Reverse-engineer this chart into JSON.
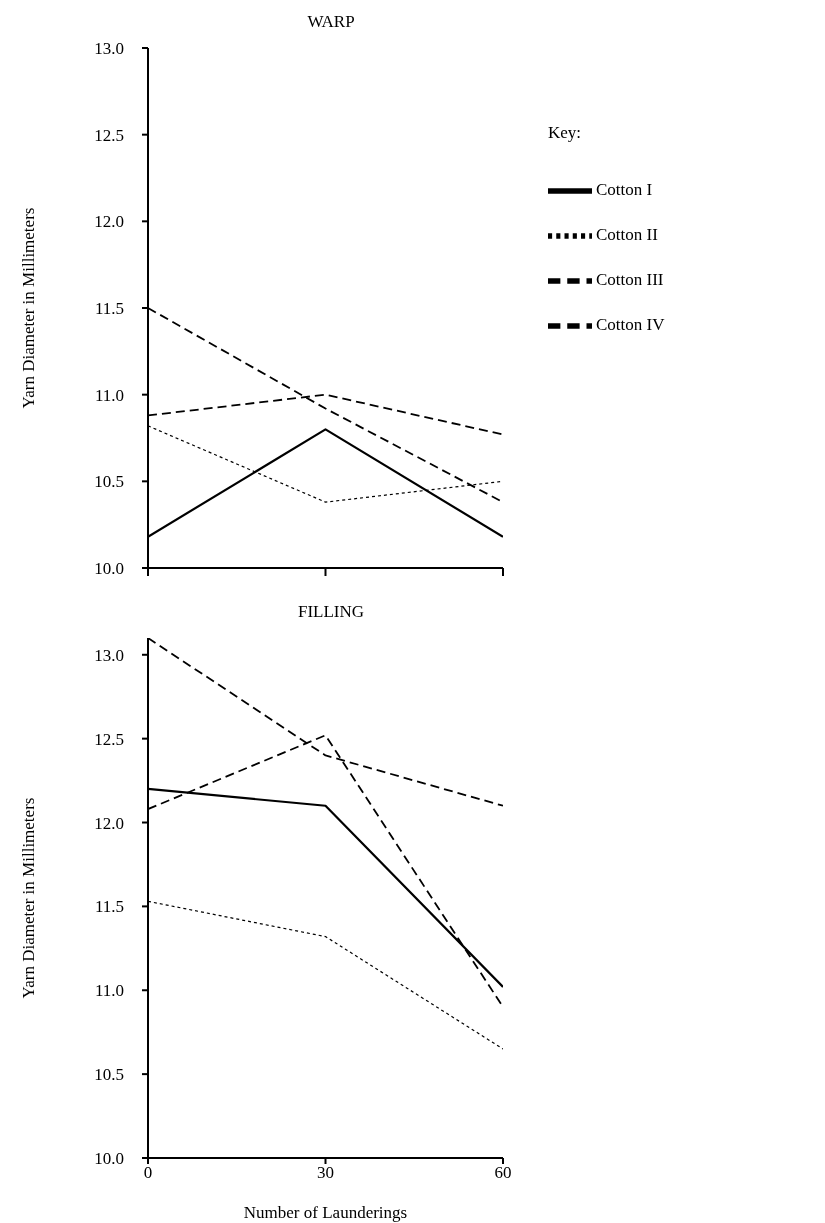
{
  "chart_data": [
    {
      "type": "line",
      "title": "WARP",
      "ylabel": "Yarn Diameter in Millimeters",
      "legend_title": "Key:",
      "legend": "right",
      "x": [
        0,
        30,
        60
      ],
      "xlim": [
        0,
        60
      ],
      "xticks": [
        {
          "value": 0,
          "label": null
        },
        {
          "value": 30,
          "label": null
        },
        {
          "value": 60,
          "label": null
        }
      ],
      "tick_labels": "y",
      "ylim": [
        10,
        13
      ],
      "yticks": [
        {
          "value": 10,
          "label": "10.0"
        },
        {
          "value": 10.5,
          "label": "10.5"
        },
        {
          "value": 11,
          "label": "11.0"
        },
        {
          "value": 11.5,
          "label": "11.5"
        },
        {
          "value": 12,
          "label": "12.0"
        },
        {
          "value": 12.5,
          "label": "12.5"
        },
        {
          "value": 13,
          "label": "13.0"
        }
      ],
      "grid": false,
      "marker": "none",
      "series": [
        {
          "name": "Cotton I",
          "color": "#000000",
          "line_style": "solid",
          "values": [
            10.18,
            10.8,
            10.18
          ]
        },
        {
          "name": "Cotton II",
          "color": "#000000",
          "line_style": "dotted",
          "values": [
            10.82,
            10.38,
            10.5
          ]
        },
        {
          "name": "Cotton III",
          "color": "#000000",
          "line_style": "dashed",
          "values": [
            11.5,
            10.92,
            10.38
          ]
        },
        {
          "name": "Cotton IV",
          "color": "#000000",
          "line_style": "dashed",
          "values": [
            10.88,
            11.0,
            10.77
          ]
        }
      ]
    },
    {
      "type": "line",
      "title": "FILLING",
      "xlabel": "Number of Launderings",
      "ylabel": "Yarn Diameter in Millimeters",
      "x": [
        0,
        30,
        60
      ],
      "xlim": [
        0,
        60
      ],
      "xticks": [
        0,
        30,
        60
      ],
      "ylim": [
        10,
        13.1
      ],
      "yticks": [
        {
          "value": 10,
          "label": "10.0"
        },
        {
          "value": 10.5,
          "label": "10.5"
        },
        {
          "value": 11,
          "label": "11.0"
        },
        {
          "value": 11.5,
          "label": "11.5"
        },
        {
          "value": 12,
          "label": "12.0"
        },
        {
          "value": 12.5,
          "label": "12.5"
        },
        {
          "value": 13,
          "label": "13.0"
        }
      ],
      "grid": false,
      "marker": "none",
      "series": [
        {
          "color": "#000000",
          "line_style": "solid",
          "values": [
            12.2,
            12.1,
            11.02
          ]
        },
        {
          "color": "#000000",
          "line_style": "dotted",
          "values": [
            11.53,
            11.32,
            10.65
          ]
        },
        {
          "color": "#000000",
          "line_style": "dashed",
          "values": [
            13.1,
            12.4,
            12.1
          ]
        },
        {
          "color": "#000000",
          "line_style": "dashed",
          "values": [
            12.08,
            12.52,
            10.9
          ]
        }
      ]
    }
  ]
}
